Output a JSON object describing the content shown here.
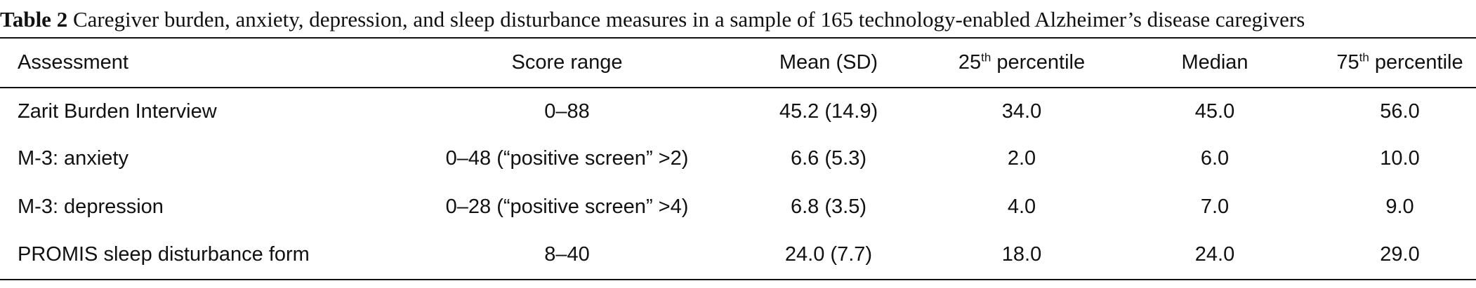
{
  "caption": {
    "label": "Table 2",
    "text": " Caregiver burden, anxiety, depression, and sleep disturbance measures in a sample of 165 technology-enabled Alzheimer’s disease caregivers"
  },
  "table": {
    "headers": {
      "assessment": "Assessment",
      "score_range": "Score range",
      "mean_sd": "Mean (SD)",
      "p25_num": "25",
      "p25_sup": "th",
      "p25_word": " percentile",
      "median": "Median",
      "p75_num": "75",
      "p75_sup": "th",
      "p75_word": " percentile"
    },
    "rows": [
      {
        "assessment": "Zarit Burden Interview",
        "score_range": "0–88",
        "mean_sd": "45.2 (14.9)",
        "p25": "34.0",
        "median": "45.0",
        "p75": "56.0"
      },
      {
        "assessment": "M-3: anxiety",
        "score_range": "0–48 (“positive screen” >2)",
        "mean_sd": "6.6 (5.3)",
        "p25": "2.0",
        "median": "6.0",
        "p75": "10.0"
      },
      {
        "assessment": "M-3: depression",
        "score_range": "0–28 (“positive screen” >4)",
        "mean_sd": "6.8 (3.5)",
        "p25": "4.0",
        "median": "7.0",
        "p75": "9.0"
      },
      {
        "assessment": "PROMIS sleep disturbance form",
        "score_range": "8–40",
        "mean_sd": "24.0 (7.7)",
        "p25": "18.0",
        "median": "24.0",
        "p75": "29.0"
      }
    ]
  }
}
